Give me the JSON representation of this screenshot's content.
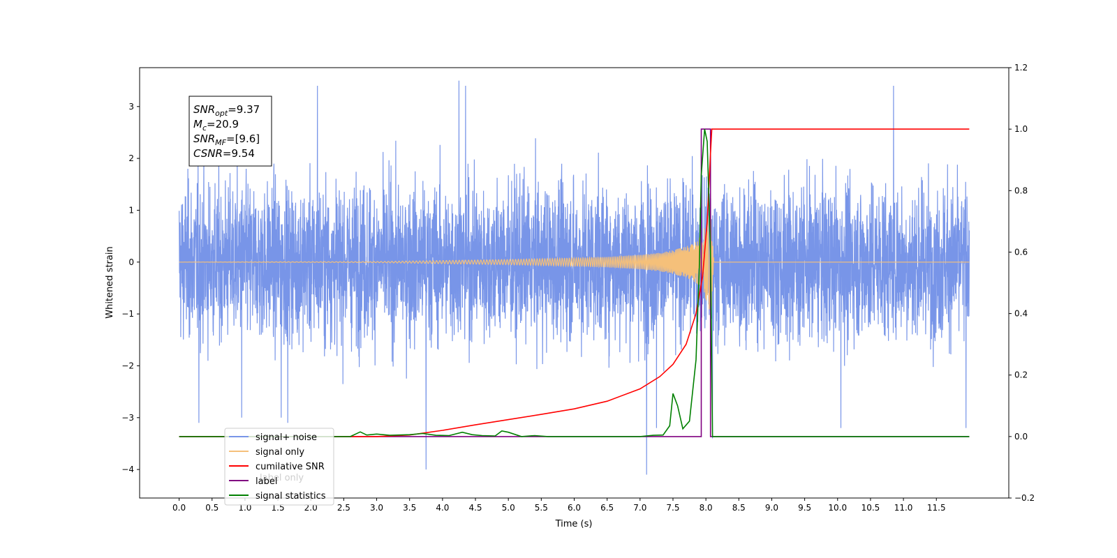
{
  "chart_data": {
    "type": "line",
    "title": "",
    "xlabel": "Time (s)",
    "ylabel": "Whitened strain",
    "xlim": [
      -0.6,
      12.6
    ],
    "ylim": [
      -4.55,
      3.75
    ],
    "y2lim": [
      -0.2,
      1.2
    ],
    "grid": false,
    "x_ticks": [
      "0.0",
      "0.5",
      "1.0",
      "1.5",
      "2.0",
      "2.5",
      "3.0",
      "3.5",
      "4.0",
      "4.5",
      "5.0",
      "5.5",
      "6.0",
      "6.5",
      "7.0",
      "7.5",
      "8.0",
      "8.5",
      "9.0",
      "9.5",
      "10.0",
      "10.5",
      "11.0",
      "11.5"
    ],
    "y_ticks": [
      "−4",
      "−3",
      "−2",
      "−1",
      "0",
      "1",
      "2",
      "3"
    ],
    "y2_ticks": [
      "−0.2",
      "0.0",
      "0.2",
      "0.4",
      "0.6",
      "0.8",
      "1.0",
      "1.2"
    ],
    "stats_box": {
      "lines": [
        {
          "sym": "SNR",
          "sub": "opt",
          "val": "=9.37"
        },
        {
          "sym": "M",
          "sub": "c",
          "val": "=20.9"
        },
        {
          "sym": "SNR",
          "sub": "MF",
          "val": "=[9.6]"
        },
        {
          "sym": "CSNR",
          "sub": "",
          "val": "=9.54"
        }
      ]
    },
    "legend": {
      "location": "lower-left",
      "entries": [
        {
          "label": "signal+ noise",
          "color": "#7895e8"
        },
        {
          "label": "signal only",
          "color": "#f5c07a"
        },
        {
          "label": "cumilative SNR",
          "color": "#ff0000"
        },
        {
          "label": "label",
          "color": "#800080"
        },
        {
          "label": "signal statistics",
          "color": "#008000"
        }
      ],
      "hidden_entry_text": "label only"
    },
    "series": [
      {
        "name": "signal+ noise",
        "axis": "left",
        "color": "#7895e8",
        "description_range": [
          -4.1,
          3.5
        ],
        "x_range": [
          0.0,
          12.0
        ],
        "spikes": [
          [
            0.3,
            -3.1
          ],
          [
            0.95,
            -3.0
          ],
          [
            1.55,
            -3.0
          ],
          [
            1.65,
            -3.1
          ],
          [
            2.1,
            3.4
          ],
          [
            3.75,
            -4.0
          ],
          [
            4.25,
            3.5
          ],
          [
            4.35,
            3.4
          ],
          [
            7.1,
            -4.1
          ],
          [
            7.25,
            -3.2
          ],
          [
            8.1,
            -3.4
          ],
          [
            10.05,
            -3.2
          ],
          [
            10.85,
            3.4
          ],
          [
            11.95,
            -3.2
          ]
        ]
      },
      {
        "name": "signal only",
        "axis": "left",
        "color": "#f5c07a",
        "x": [
          0.0,
          3.0,
          4.0,
          5.0,
          6.0,
          6.5,
          7.0,
          7.3,
          7.5,
          7.7,
          7.85,
          7.95,
          8.02,
          8.07,
          8.12,
          12.0
        ],
        "amplitude": [
          0.0,
          0.01,
          0.03,
          0.05,
          0.08,
          0.1,
          0.14,
          0.18,
          0.23,
          0.3,
          0.4,
          0.55,
          0.8,
          1.2,
          0.0,
          0.0
        ]
      },
      {
        "name": "cumilative SNR",
        "axis": "right",
        "color": "#ff0000",
        "x": [
          0.0,
          3.0,
          3.5,
          4.0,
          4.5,
          5.0,
          5.5,
          6.0,
          6.5,
          7.0,
          7.3,
          7.5,
          7.7,
          7.85,
          7.95,
          8.02,
          8.07,
          8.09,
          12.0
        ],
        "y": [
          0.0,
          0.0,
          0.005,
          0.02,
          0.038,
          0.055,
          0.072,
          0.09,
          0.115,
          0.155,
          0.195,
          0.235,
          0.3,
          0.4,
          0.52,
          0.7,
          0.92,
          1.0,
          1.0
        ]
      },
      {
        "name": "label",
        "axis": "right",
        "color": "#800080",
        "x": [
          0.0,
          7.93,
          7.93,
          8.07,
          8.07,
          12.0
        ],
        "y": [
          0.0,
          0.0,
          1.0,
          1.0,
          0.0,
          0.0
        ]
      },
      {
        "name": "signal statistics",
        "axis": "right",
        "color": "#008000",
        "x": [
          0.0,
          2.6,
          2.75,
          2.85,
          3.0,
          3.2,
          3.5,
          3.7,
          3.9,
          4.1,
          4.3,
          4.45,
          4.6,
          4.8,
          4.9,
          5.0,
          5.2,
          5.4,
          5.6,
          6.0,
          6.5,
          7.0,
          7.2,
          7.35,
          7.45,
          7.5,
          7.57,
          7.65,
          7.75,
          7.85,
          7.9,
          7.93,
          7.98,
          8.02,
          8.07,
          8.1,
          8.15,
          12.0
        ],
        "y": [
          0.0,
          0.0,
          0.015,
          0.005,
          0.008,
          0.004,
          0.006,
          0.01,
          0.004,
          0.003,
          0.014,
          0.006,
          0.003,
          0.002,
          0.018,
          0.014,
          0.0,
          0.003,
          0.0,
          0.0,
          0.0,
          0.0,
          0.004,
          0.005,
          0.035,
          0.14,
          0.1,
          0.025,
          0.05,
          0.25,
          0.55,
          0.85,
          1.0,
          0.96,
          0.6,
          0.0,
          0.0,
          0.0
        ]
      }
    ]
  }
}
